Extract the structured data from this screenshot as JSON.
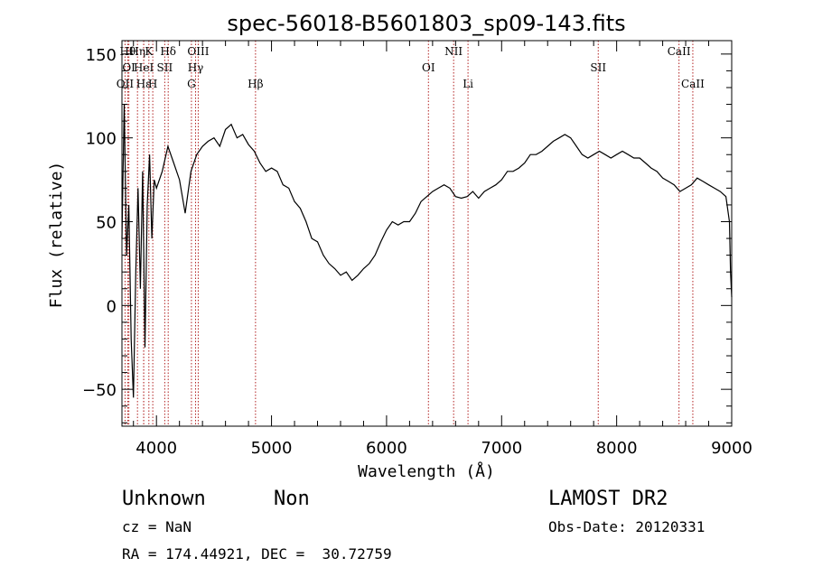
{
  "chart_data": {
    "type": "line",
    "title": "spec-56018-B5601803_sp09-143.fits",
    "xlabel": "Wavelength (Å)",
    "ylabel": "Flux (relative)",
    "xlim": [
      3700,
      9000
    ],
    "ylim": [
      -72,
      158
    ],
    "x_ticks": [
      4000,
      5000,
      6000,
      7000,
      8000,
      9000
    ],
    "y_ticks": [
      -50,
      0,
      50,
      100,
      150
    ],
    "grid": false,
    "series": [
      {
        "color": "#000000",
        "x": [
          3700,
          3720,
          3740,
          3760,
          3780,
          3800,
          3820,
          3840,
          3860,
          3880,
          3900,
          3920,
          3940,
          3960,
          3980,
          4000,
          4050,
          4100,
          4150,
          4200,
          4250,
          4300,
          4350,
          4400,
          4450,
          4500,
          4550,
          4600,
          4650,
          4700,
          4750,
          4800,
          4850,
          4900,
          4950,
          5000,
          5050,
          5100,
          5150,
          5200,
          5250,
          5300,
          5350,
          5400,
          5450,
          5500,
          5550,
          5600,
          5650,
          5700,
          5750,
          5800,
          5850,
          5900,
          5950,
          6000,
          6050,
          6100,
          6150,
          6200,
          6250,
          6300,
          6350,
          6400,
          6450,
          6500,
          6550,
          6600,
          6650,
          6700,
          6750,
          6800,
          6850,
          6900,
          6950,
          7000,
          7050,
          7100,
          7150,
          7200,
          7250,
          7300,
          7350,
          7400,
          7450,
          7500,
          7550,
          7600,
          7650,
          7700,
          7750,
          7800,
          7850,
          7900,
          7950,
          8000,
          8050,
          8100,
          8150,
          8200,
          8250,
          8300,
          8350,
          8400,
          8450,
          8500,
          8550,
          8600,
          8650,
          8700,
          8750,
          8800,
          8850,
          8900,
          8950,
          8980,
          8990,
          9000
        ],
        "y": [
          40,
          120,
          30,
          60,
          -20,
          -55,
          20,
          70,
          10,
          80,
          -25,
          60,
          90,
          40,
          75,
          70,
          80,
          95,
          85,
          75,
          55,
          80,
          90,
          95,
          98,
          100,
          95,
          105,
          108,
          100,
          102,
          96,
          92,
          85,
          80,
          82,
          80,
          72,
          70,
          62,
          58,
          50,
          40,
          38,
          30,
          25,
          22,
          18,
          20,
          15,
          18,
          22,
          25,
          30,
          38,
          45,
          50,
          48,
          50,
          50,
          55,
          62,
          65,
          68,
          70,
          72,
          70,
          65,
          64,
          65,
          68,
          64,
          68,
          70,
          72,
          75,
          80,
          80,
          82,
          85,
          90,
          90,
          92,
          95,
          98,
          100,
          102,
          100,
          95,
          90,
          88,
          90,
          92,
          90,
          88,
          90,
          92,
          90,
          88,
          88,
          85,
          82,
          80,
          76,
          74,
          72,
          68,
          70,
          72,
          76,
          74,
          72,
          70,
          68,
          65,
          50,
          20,
          5
        ]
      }
    ],
    "lines": [
      {
        "label": "OII",
        "x": 3727,
        "row": 2
      },
      {
        "label": "Hθ",
        "x": 3750,
        "row": 0
      },
      {
        "label": "OI",
        "x": 3760,
        "row": 1
      },
      {
        "label": "Hη",
        "x": 3835,
        "row": 0
      },
      {
        "label": "HeI",
        "x": 3889,
        "row": 1
      },
      {
        "label": "Hε",
        "x": 3889,
        "row": 2
      },
      {
        "label": "K",
        "x": 3934,
        "row": 0
      },
      {
        "label": "SII",
        "x": 4072,
        "row": 1
      },
      {
        "label": "H",
        "x": 3968,
        "row": 2
      },
      {
        "label": "Hδ",
        "x": 4102,
        "row": 0
      },
      {
        "label": "OIII",
        "x": 4363,
        "row": 0
      },
      {
        "label": "Hγ",
        "x": 4340,
        "row": 1
      },
      {
        "label": "G",
        "x": 4304,
        "row": 2
      },
      {
        "label": "Hβ",
        "x": 4861,
        "row": 2
      },
      {
        "label": "OI",
        "x": 6364,
        "row": 1
      },
      {
        "label": "NII",
        "x": 6583,
        "row": 0
      },
      {
        "label": "Li",
        "x": 6708,
        "row": 2
      },
      {
        "label": "SII",
        "x": 7840,
        "row": 1
      },
      {
        "label": "CaII",
        "x": 8542,
        "row": 0
      },
      {
        "label": "CaII",
        "x": 8662,
        "row": 2
      }
    ],
    "annotations": {
      "class": "Unknown",
      "subclass": "Non",
      "survey": "LAMOST DR2",
      "cz": "cz = NaN",
      "obs_date": "Obs-Date: 20120331",
      "coords": "RA = 174.44921, DEC =  30.72759"
    }
  }
}
